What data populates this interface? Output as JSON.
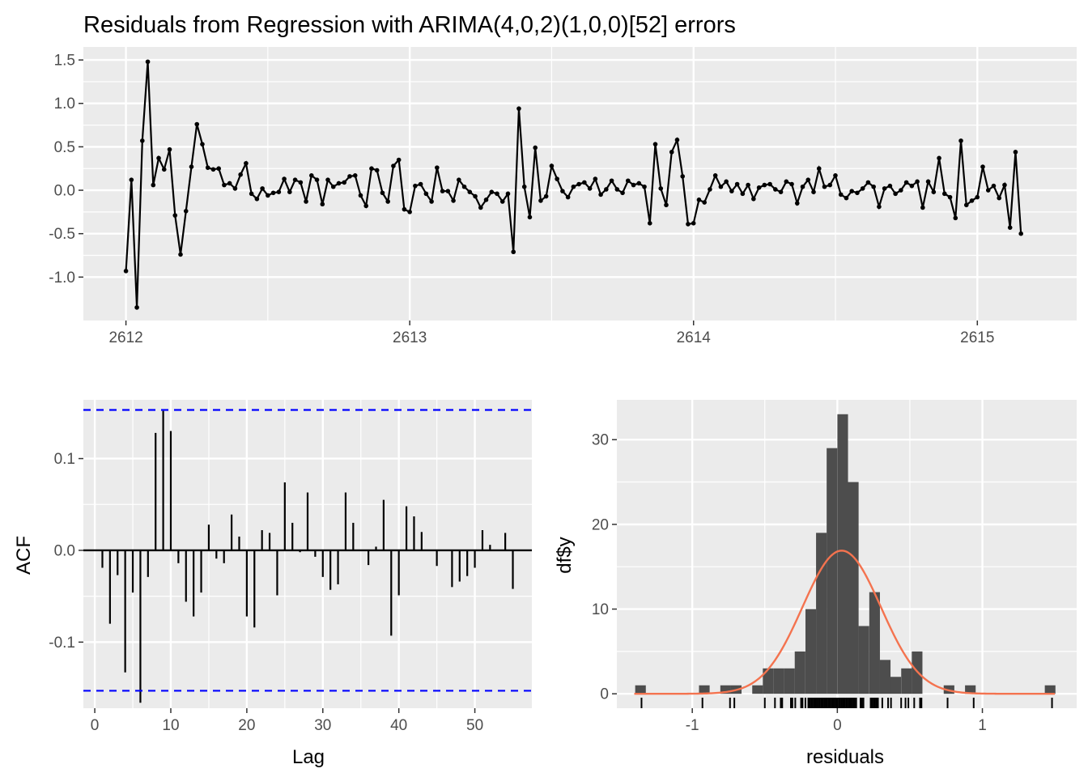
{
  "title": "Residuals from Regression with ARIMA(4,0,2)(1,0,0)[52] errors",
  "colors": {
    "panel_bg": "#ebebeb",
    "grid": "#ffffff",
    "line": "#000000",
    "ci": "#0000ff",
    "bar": "#4d4d4d",
    "density": "#f4734f",
    "axis_text": "#4d4d4d"
  },
  "chart_data": [
    {
      "type": "line",
      "name": "residuals-timeseries",
      "xlim": [
        2611.85,
        2615.35
      ],
      "ylim": [
        -1.5,
        1.65
      ],
      "x_ticks": [
        2612,
        2613,
        2614,
        2615
      ],
      "y_ticks": [
        -1.0,
        -0.5,
        0.0,
        0.5,
        1.0,
        1.5
      ],
      "y_tick_labels": [
        "-1.0",
        "-0.5",
        "0.0",
        "0.5",
        "1.0",
        "1.5"
      ],
      "x_start": 2612.0,
      "x_step": 0.01923,
      "y": [
        -0.93,
        0.12,
        -1.35,
        0.57,
        1.48,
        0.06,
        0.37,
        0.24,
        0.47,
        -0.29,
        -0.74,
        -0.24,
        0.27,
        0.76,
        0.53,
        0.26,
        0.24,
        0.25,
        0.06,
        0.08,
        0.02,
        0.18,
        0.31,
        -0.04,
        -0.1,
        0.02,
        -0.06,
        -0.03,
        -0.02,
        0.13,
        -0.02,
        0.12,
        0.09,
        -0.13,
        0.17,
        0.12,
        -0.16,
        0.12,
        0.04,
        0.08,
        0.09,
        0.16,
        0.17,
        -0.06,
        -0.18,
        0.25,
        0.23,
        -0.03,
        -0.13,
        0.28,
        0.35,
        -0.22,
        -0.25,
        0.05,
        0.07,
        -0.04,
        -0.13,
        0.26,
        -0.01,
        -0.01,
        -0.12,
        0.12,
        0.04,
        -0.02,
        -0.07,
        -0.2,
        -0.11,
        -0.02,
        -0.04,
        -0.13,
        -0.04,
        -0.71,
        0.94,
        0.04,
        -0.31,
        0.49,
        -0.12,
        -0.07,
        0.28,
        0.13,
        -0.01,
        -0.08,
        0.04,
        0.07,
        0.09,
        0.02,
        0.13,
        -0.05,
        0.01,
        0.11,
        0.01,
        -0.03,
        0.11,
        0.06,
        0.08,
        0.04,
        -0.38,
        0.53,
        0.02,
        -0.17,
        0.44,
        0.58,
        0.16,
        -0.39,
        -0.38,
        -0.11,
        -0.14,
        0.01,
        0.17,
        0.04,
        0.1,
        -0.01,
        0.07,
        -0.04,
        0.06,
        -0.1,
        0.03,
        0.06,
        0.07,
        0.01,
        -0.02,
        0.1,
        0.07,
        -0.15,
        0.04,
        0.12,
        -0.02,
        0.25,
        0.04,
        0.06,
        0.17,
        -0.05,
        -0.09,
        -0.01,
        -0.03,
        0.02,
        0.09,
        0.04,
        -0.19,
        0.02,
        0.05,
        -0.04,
        0.0,
        0.09,
        0.05,
        0.1,
        -0.2,
        0.1,
        -0.02,
        0.37,
        -0.04,
        -0.08,
        -0.32,
        0.57,
        -0.17,
        -0.12,
        -0.08,
        0.27,
        0.0,
        0.05,
        -0.09,
        0.06,
        -0.43,
        0.44,
        -0.5
      ]
    },
    {
      "type": "bar",
      "name": "acf",
      "xlabel": "Lag",
      "ylabel": "ACF",
      "xlim": [
        -1.5,
        57.5
      ],
      "ylim": [
        -0.172,
        0.164
      ],
      "x_ticks": [
        0,
        10,
        20,
        30,
        40,
        50
      ],
      "y_ticks": [
        -0.1,
        0.0,
        0.1
      ],
      "y_tick_labels": [
        "-0.1",
        "0.0",
        "0.1"
      ],
      "ci": 0.153,
      "lags": [
        1,
        2,
        3,
        4,
        5,
        6,
        7,
        8,
        9,
        10,
        11,
        12,
        13,
        14,
        15,
        16,
        17,
        18,
        19,
        20,
        21,
        22,
        23,
        24,
        25,
        26,
        27,
        28,
        29,
        30,
        31,
        32,
        33,
        34,
        35,
        36,
        37,
        38,
        39,
        40,
        41,
        42,
        43,
        44,
        45,
        46,
        47,
        48,
        49,
        50,
        51,
        52,
        53,
        54,
        55
      ],
      "values": [
        -0.019,
        -0.08,
        -0.027,
        -0.133,
        -0.046,
        -0.166,
        -0.029,
        0.128,
        0.152,
        0.13,
        -0.014,
        -0.056,
        -0.072,
        -0.046,
        0.028,
        -0.009,
        -0.014,
        0.039,
        0.015,
        -0.072,
        -0.084,
        0.022,
        0.019,
        -0.049,
        0.074,
        0.03,
        -0.002,
        0.063,
        -0.007,
        -0.029,
        -0.043,
        -0.037,
        0.063,
        0.03,
        0.0,
        -0.016,
        0.004,
        0.055,
        -0.093,
        -0.049,
        0.048,
        0.037,
        0.02,
        0.0,
        -0.017,
        0.0,
        -0.04,
        -0.034,
        -0.028,
        -0.019,
        0.022,
        0.006,
        0.0,
        0.019,
        -0.042
      ]
    },
    {
      "type": "bar",
      "name": "histogram",
      "xlabel": "residuals",
      "ylabel": "df$y",
      "xlim": [
        -1.52,
        1.65
      ],
      "ylim": [
        -1.7,
        34.7
      ],
      "x_ticks": [
        -1,
        0,
        1
      ],
      "x_tick_labels": [
        "-1",
        "0",
        "1"
      ],
      "y_ticks": [
        0,
        10,
        20,
        30
      ],
      "bin_width": 0.0733,
      "bin_centers": [
        -1.357,
        -0.917,
        -0.77,
        -0.697,
        -0.55,
        -0.477,
        -0.403,
        -0.33,
        -0.257,
        -0.183,
        -0.11,
        -0.037,
        0.037,
        0.11,
        0.183,
        0.257,
        0.33,
        0.403,
        0.477,
        0.55,
        0.77,
        0.917,
        1.467
      ],
      "counts": [
        1,
        1,
        1,
        1,
        1,
        3,
        3,
        3,
        5,
        10,
        19,
        29,
        33,
        25,
        8,
        12,
        4,
        2,
        3,
        5,
        1,
        1,
        1
      ],
      "density_mean": 0.03,
      "density_sd": 0.27,
      "density_scale": 11.55,
      "rug": [
        -1.35,
        -0.93,
        -0.74,
        -0.71,
        -0.5,
        -0.43,
        -0.39,
        -0.38,
        -0.32,
        -0.31,
        -0.29,
        -0.25,
        -0.24,
        -0.22,
        -0.2,
        -0.19,
        -0.18,
        -0.17,
        -0.16,
        -0.15,
        -0.14,
        -0.13,
        -0.12,
        -0.11,
        -0.1,
        -0.09,
        -0.08,
        -0.07,
        -0.06,
        -0.05,
        -0.04,
        -0.03,
        -0.02,
        -0.01,
        0.0,
        0.01,
        0.02,
        0.03,
        0.04,
        0.05,
        0.06,
        0.07,
        0.08,
        0.09,
        0.1,
        0.11,
        0.12,
        0.13,
        0.16,
        0.17,
        0.18,
        0.23,
        0.24,
        0.25,
        0.26,
        0.27,
        0.28,
        0.31,
        0.35,
        0.37,
        0.44,
        0.47,
        0.49,
        0.53,
        0.57,
        0.58,
        0.76,
        0.94,
        1.48
      ]
    }
  ]
}
